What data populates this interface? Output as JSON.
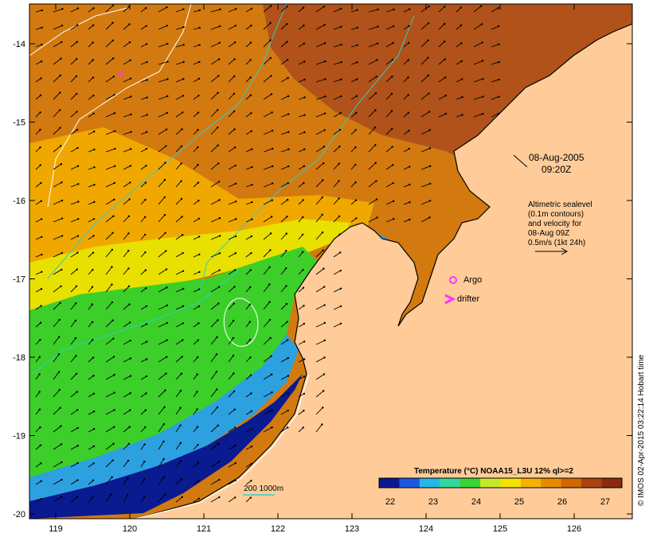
{
  "map": {
    "date": "08-Aug-2005",
    "time": "09:20Z",
    "x_ticks": [
      "119",
      "120",
      "121",
      "122",
      "123",
      "124",
      "125",
      "126"
    ],
    "y_ticks": [
      "-14",
      "-15",
      "-16",
      "-17",
      "-18",
      "-19",
      "-20"
    ],
    "altimetry_note": [
      "Altimetric sealevel",
      "(0.1m contours)",
      "and velocity for",
      "08-Aug 09Z",
      "0.5m/s (1kt 24h)"
    ],
    "legend": {
      "argo": "Argo",
      "drifter": "drifter"
    },
    "depth_label": "200  1000m",
    "colorbar": {
      "title": "Temperature (°C) NOAA15_L3U 12% ql>=2",
      "ticks": [
        "22",
        "23",
        "24",
        "25",
        "26",
        "27"
      ],
      "colors": [
        "#0a1a8c",
        "#1f56e0",
        "#27b6e8",
        "#33d89a",
        "#3cd23a",
        "#c6e82a",
        "#f4e300",
        "#f7b100",
        "#e88a00",
        "#cf6600",
        "#a9420f",
        "#8a2a10"
      ]
    },
    "credit": "© IMOS 02-Apr-2015 03:22:14 Hobart time",
    "colors": {
      "land": "#ffcc99",
      "warm": "#d27a10",
      "hot": "#b0521a",
      "mid": "#f0a800",
      "yellow": "#e8e000",
      "green": "#3ccf2a",
      "cool": "#2da0e0",
      "deep": "#0a1a90",
      "contour_white": "#ffffff",
      "contour_cyan": "#33cccc",
      "magenta": "#ff33ff"
    }
  }
}
